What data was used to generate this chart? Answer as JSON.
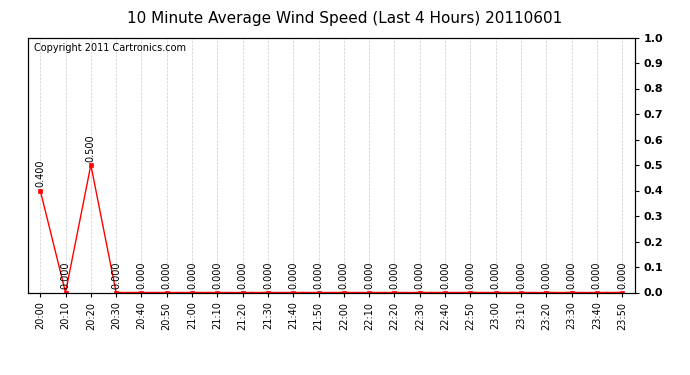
{
  "title": "10 Minute Average Wind Speed (Last 4 Hours) 20110601",
  "copyright": "Copyright 2011 Cartronics.com",
  "x_labels": [
    "20:00",
    "20:10",
    "20:20",
    "20:30",
    "20:40",
    "20:50",
    "21:00",
    "21:10",
    "21:20",
    "21:30",
    "21:40",
    "21:50",
    "22:00",
    "22:10",
    "22:20",
    "22:30",
    "22:40",
    "22:50",
    "23:00",
    "23:10",
    "23:20",
    "23:30",
    "23:40",
    "23:50"
  ],
  "y_values": [
    0.4,
    0.0,
    0.5,
    0.0,
    0.0,
    0.0,
    0.0,
    0.0,
    0.0,
    0.0,
    0.0,
    0.0,
    0.0,
    0.0,
    0.0,
    0.0,
    0.0,
    0.0,
    0.0,
    0.0,
    0.0,
    0.0,
    0.0,
    0.0
  ],
  "line_color": "#ff0000",
  "marker_color": "#ff0000",
  "background_color": "#ffffff",
  "grid_color": "#cccccc",
  "ylim": [
    0.0,
    1.0
  ],
  "right_yticks": [
    0.0,
    0.1,
    0.2,
    0.3,
    0.4,
    0.5,
    0.6,
    0.7,
    0.8,
    0.9,
    1.0
  ],
  "title_fontsize": 11,
  "label_fontsize": 7,
  "copyright_fontsize": 7,
  "annotation_fontsize": 7
}
